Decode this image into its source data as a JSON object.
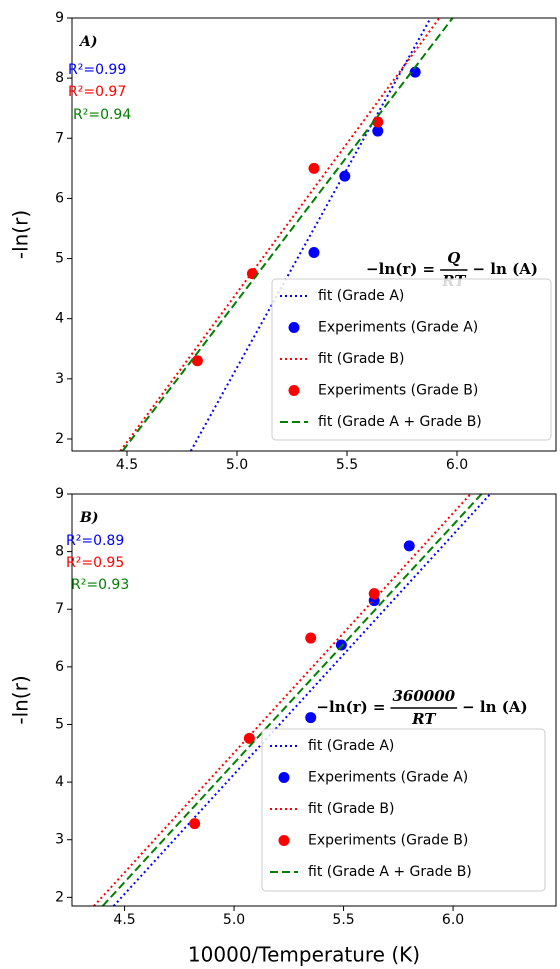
{
  "chart_data": [
    {
      "type": "line",
      "panel_label": "A)",
      "ylabel": "-ln(r)",
      "xlim": [
        4.25,
        6.45
      ],
      "ylim": [
        1.8,
        9
      ],
      "xticks": [
        4.5,
        {
          "value": 5,
          "label": "5.0"
        },
        5.5,
        {
          "value": 6,
          "label": "6.0"
        }
      ],
      "yticks": [
        2,
        3,
        4,
        5,
        6,
        7,
        8,
        9
      ],
      "series": [
        {
          "name": "fit (Grade A)",
          "style": "dotted",
          "color": "#0000ff",
          "x": [
            4.79,
            5.88
          ],
          "y": [
            1.8,
            9
          ]
        },
        {
          "name": "Experiments (Grade A)",
          "style": "markers",
          "color": "#0000ff",
          "x": [
            5.35,
            5.49,
            5.64,
            5.81
          ],
          "y": [
            5.1,
            6.37,
            7.12,
            8.1
          ]
        },
        {
          "name": "fit (Grade B)",
          "style": "dotted",
          "color": "#ff0000",
          "x": [
            4.47,
            5.92
          ],
          "y": [
            1.8,
            9
          ]
        },
        {
          "name": "Experiments (Grade B)",
          "style": "markers",
          "color": "#ff0000",
          "x": [
            4.82,
            5.07,
            5.35,
            5.64
          ],
          "y": [
            3.3,
            4.75,
            6.5,
            7.27
          ]
        },
        {
          "name": "fit (Grade A + Grade B)",
          "style": "dashed",
          "color": "#008000",
          "x": [
            4.48,
            5.98
          ],
          "y": [
            1.8,
            9
          ]
        }
      ],
      "annotations": [
        {
          "text": "R²=0.99",
          "color": "#0000ff"
        },
        {
          "text": "R²=0.97",
          "color": "#ff0000"
        },
        {
          "text": "R²=0.94",
          "color": "#008000"
        }
      ],
      "equation": {
        "lhs": "−ln(r) =",
        "numerator": "Q",
        "denominator": "RT",
        "rhs": "− ln (A)"
      }
    },
    {
      "type": "line",
      "panel_label": "B)",
      "ylabel": "-ln(r)",
      "xlabel": "10000/Temperature (K)",
      "xlim": [
        4.26,
        6.47
      ],
      "ylim": [
        1.85,
        9
      ],
      "xticks": [
        4.5,
        {
          "value": 5,
          "label": "5.0"
        },
        5.5,
        {
          "value": 6,
          "label": "6.0"
        }
      ],
      "yticks": [
        2,
        3,
        4,
        5,
        6,
        7,
        8,
        9
      ],
      "series": [
        {
          "name": "fit (Grade A)",
          "style": "dotted",
          "color": "#0000ff",
          "x": [
            4.45,
            6.17
          ],
          "y": [
            1.85,
            9
          ]
        },
        {
          "name": "Experiments (Grade A)",
          "style": "markers",
          "color": "#0000ff",
          "x": [
            5.35,
            5.49,
            5.64,
            5.8
          ],
          "y": [
            5.12,
            6.38,
            7.15,
            8.1
          ]
        },
        {
          "name": "fit (Grade B)",
          "style": "dotted",
          "color": "#ff0000",
          "x": [
            4.36,
            6.08
          ],
          "y": [
            1.85,
            9
          ]
        },
        {
          "name": "Experiments (Grade B)",
          "style": "markers",
          "color": "#ff0000",
          "x": [
            4.82,
            5.07,
            5.35,
            5.64
          ],
          "y": [
            3.28,
            4.76,
            6.5,
            7.27
          ]
        },
        {
          "name": "fit (Grade A + Grade B)",
          "style": "dashed",
          "color": "#008000",
          "x": [
            4.4,
            6.13
          ],
          "y": [
            1.85,
            9
          ]
        }
      ],
      "annotations": [
        {
          "text": "R²=0.89",
          "color": "#0000ff"
        },
        {
          "text": "R²=0.95",
          "color": "#ff0000"
        },
        {
          "text": "R²=0.93",
          "color": "#008000"
        }
      ],
      "equation": {
        "lhs": "−ln(r) =",
        "numerator": "360000",
        "denominator": "RT",
        "rhs": "− ln (A)"
      }
    }
  ]
}
